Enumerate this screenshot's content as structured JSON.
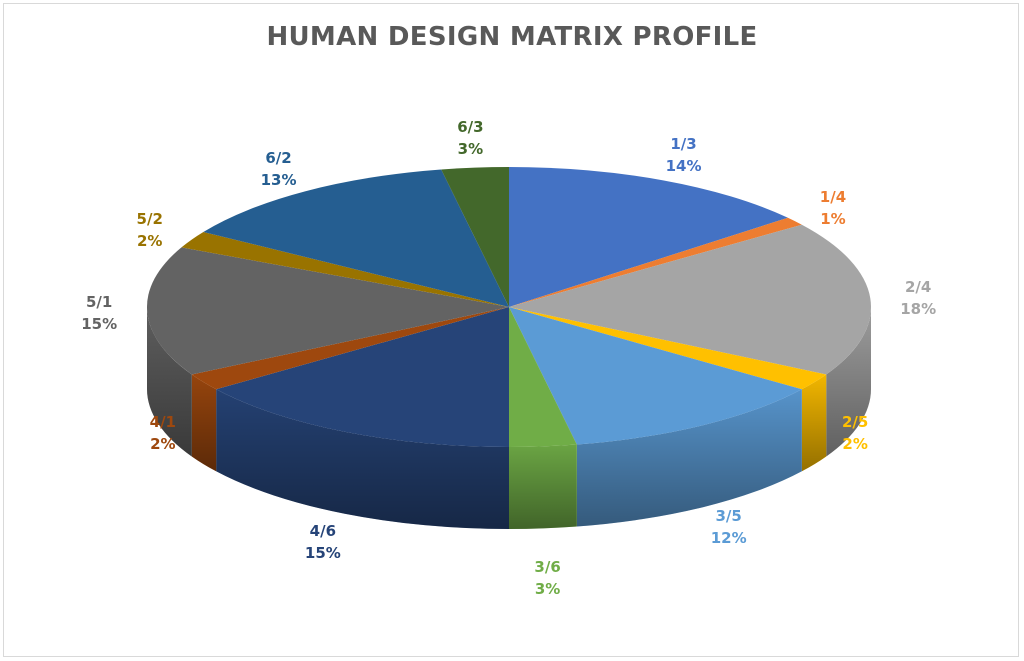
{
  "chart_data": {
    "type": "pie",
    "title": "HUMAN DESIGN MATRIX PROFILE",
    "slices": [
      {
        "label": "1/3",
        "pct_text": "14%",
        "value": 14,
        "color": "#4472c4",
        "label_color": "#4472c4"
      },
      {
        "label": "1/4",
        "pct_text": "1%",
        "value": 1,
        "color": "#ed7d31",
        "label_color": "#ed7d31"
      },
      {
        "label": "2/4",
        "pct_text": "18%",
        "value": 18,
        "color": "#a5a5a5",
        "label_color": "#a5a5a5"
      },
      {
        "label": "2/5",
        "pct_text": "2%",
        "value": 2,
        "color": "#ffc000",
        "label_color": "#ffc000"
      },
      {
        "label": "3/5",
        "pct_text": "12%",
        "value": 12,
        "color": "#5b9bd5",
        "label_color": "#5b9bd5"
      },
      {
        "label": "3/6",
        "pct_text": "3%",
        "value": 3,
        "color": "#70ad47",
        "label_color": "#70ad47"
      },
      {
        "label": "4/6",
        "pct_text": "15%",
        "value": 15,
        "color": "#264478",
        "label_color": "#264478"
      },
      {
        "label": "4/1",
        "pct_text": "2%",
        "value": 2,
        "color": "#9e480e",
        "label_color": "#9e480e"
      },
      {
        "label": "5/1",
        "pct_text": "15%",
        "value": 15,
        "color": "#636363",
        "label_color": "#636363"
      },
      {
        "label": "5/2",
        "pct_text": "2%",
        "value": 2,
        "color": "#997300",
        "label_color": "#997300"
      },
      {
        "label": "6/2",
        "pct_text": "13%",
        "value": 13,
        "color": "#255e91",
        "label_color": "#255e91"
      },
      {
        "label": "6/3",
        "pct_text": "3%",
        "value": 3,
        "color": "#43682b",
        "label_color": "#43682b"
      }
    ],
    "style": "3d-pie",
    "start": "12 o'clock",
    "direction": "clockwise",
    "legend": "none",
    "data_labels": "outside, category and percentage"
  }
}
